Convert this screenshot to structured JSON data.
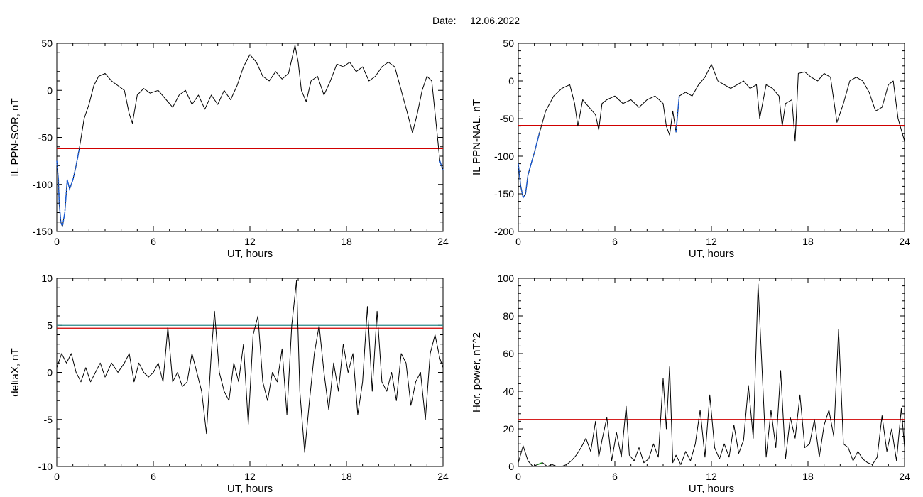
{
  "header": {
    "date_label": "Date:",
    "date_value": "12.06.2022"
  },
  "chart_data": [
    {
      "type": "line",
      "title": "",
      "xlabel": "UT, hours",
      "ylabel": "IL PPN-SOR, nT",
      "xlim": [
        0,
        24
      ],
      "ylim": [
        -150,
        50
      ],
      "xticks": [
        0,
        6,
        12,
        18,
        24
      ],
      "yticks": [
        -150,
        -100,
        -50,
        0,
        50
      ],
      "threshold": {
        "value": -62,
        "color": "#d00000"
      },
      "highlight_color": "#1f5fd6",
      "highlight_ranges": [
        [
          0,
          1.4
        ],
        [
          23.7,
          24
        ]
      ],
      "series": [
        {
          "color": "#000000",
          "x": [
            0,
            0.1,
            0.15,
            0.25,
            0.35,
            0.5,
            0.65,
            0.8,
            1.0,
            1.2,
            1.4,
            1.7,
            2.0,
            2.3,
            2.6,
            3.0,
            3.4,
            3.8,
            4.2,
            4.5,
            4.7,
            5.0,
            5.4,
            5.8,
            6.3,
            6.8,
            7.2,
            7.6,
            8.0,
            8.4,
            8.8,
            9.2,
            9.6,
            10.0,
            10.4,
            10.8,
            11.2,
            11.6,
            12.0,
            12.4,
            12.8,
            13.2,
            13.6,
            14.0,
            14.4,
            14.8,
            15.0,
            15.2,
            15.5,
            15.8,
            16.2,
            16.6,
            17.0,
            17.4,
            17.8,
            18.2,
            18.6,
            19.0,
            19.4,
            19.8,
            20.2,
            20.6,
            21.0,
            21.4,
            21.8,
            22.1,
            22.4,
            22.7,
            23.0,
            23.3,
            23.6,
            23.8,
            24.0
          ],
          "y": [
            -75,
            -95,
            -120,
            -140,
            -145,
            -130,
            -95,
            -105,
            -95,
            -80,
            -62,
            -30,
            -15,
            5,
            15,
            18,
            10,
            5,
            0,
            -25,
            -35,
            -5,
            2,
            -3,
            0,
            -10,
            -18,
            -5,
            0,
            -15,
            -5,
            -20,
            -5,
            -15,
            0,
            -10,
            5,
            25,
            38,
            30,
            15,
            10,
            20,
            12,
            18,
            48,
            30,
            0,
            -12,
            10,
            15,
            -5,
            10,
            28,
            25,
            30,
            20,
            25,
            10,
            15,
            25,
            30,
            25,
            0,
            -25,
            -45,
            -25,
            0,
            15,
            10,
            -40,
            -75,
            -85
          ]
        }
      ]
    },
    {
      "type": "line",
      "title": "",
      "xlabel": "UT, hours",
      "ylabel": "IL PPN-NAL, nT",
      "xlim": [
        0,
        24
      ],
      "ylim": [
        -200,
        50
      ],
      "xticks": [
        0,
        6,
        12,
        18,
        24
      ],
      "yticks": [
        -200,
        -150,
        -100,
        -50,
        0,
        50
      ],
      "threshold": {
        "value": -59,
        "color": "#d00000"
      },
      "highlight_color": "#1f5fd6",
      "highlight_ranges": [
        [
          0,
          1.3
        ],
        [
          3.6,
          3.8
        ],
        [
          5.1,
          5.25
        ],
        [
          9.3,
          9.5
        ],
        [
          9.8,
          10.0
        ],
        [
          16.3,
          16.5
        ],
        [
          17.1,
          17.3
        ]
      ],
      "series": [
        {
          "color": "#000000",
          "x": [
            0,
            0.15,
            0.3,
            0.45,
            0.6,
            0.8,
            1.0,
            1.3,
            1.7,
            2.2,
            2.7,
            3.2,
            3.5,
            3.7,
            4.0,
            4.4,
            4.8,
            5.0,
            5.2,
            5.5,
            6.0,
            6.5,
            7.0,
            7.5,
            8.0,
            8.5,
            9.0,
            9.2,
            9.4,
            9.6,
            9.8,
            10.0,
            10.4,
            10.8,
            11.2,
            11.6,
            12.0,
            12.4,
            12.8,
            13.2,
            13.6,
            14.0,
            14.4,
            14.8,
            15.0,
            15.4,
            15.8,
            16.2,
            16.4,
            16.6,
            17.0,
            17.2,
            17.4,
            17.8,
            18.2,
            18.6,
            19.0,
            19.4,
            19.8,
            20.2,
            20.6,
            21.0,
            21.4,
            21.8,
            22.2,
            22.6,
            23.0,
            23.3,
            23.6,
            24.0
          ],
          "y": [
            -110,
            -140,
            -155,
            -150,
            -125,
            -110,
            -95,
            -70,
            -40,
            -20,
            -10,
            -5,
            -30,
            -60,
            -25,
            -35,
            -45,
            -65,
            -30,
            -25,
            -20,
            -30,
            -25,
            -35,
            -25,
            -20,
            -30,
            -60,
            -72,
            -40,
            -68,
            -20,
            -15,
            -20,
            -5,
            5,
            22,
            0,
            -5,
            -10,
            -5,
            0,
            -10,
            -5,
            -50,
            -5,
            -10,
            -20,
            -60,
            -30,
            -25,
            -80,
            10,
            12,
            5,
            0,
            10,
            5,
            -55,
            -30,
            0,
            5,
            0,
            -15,
            -40,
            -35,
            -5,
            0,
            -50,
            -80
          ]
        }
      ]
    },
    {
      "type": "line",
      "title": "",
      "xlabel": "UT, hours",
      "ylabel": "deltaX, nT",
      "xlim": [
        0,
        24
      ],
      "ylim": [
        -10,
        10
      ],
      "xticks": [
        0,
        6,
        12,
        18,
        24
      ],
      "yticks": [
        -10,
        -5,
        0,
        5,
        10
      ],
      "thresholds": [
        {
          "value": 5.0,
          "color": "#2a8a8a"
        },
        {
          "value": 4.7,
          "color": "#d00000"
        }
      ],
      "series": [
        {
          "color": "#000000",
          "x": [
            0,
            0.3,
            0.6,
            0.9,
            1.2,
            1.5,
            1.8,
            2.1,
            2.4,
            2.7,
            3.0,
            3.4,
            3.8,
            4.2,
            4.5,
            4.8,
            5.1,
            5.4,
            5.7,
            6.0,
            6.3,
            6.6,
            6.9,
            7.2,
            7.5,
            7.8,
            8.1,
            8.4,
            8.7,
            9.0,
            9.3,
            9.6,
            9.8,
            10.1,
            10.4,
            10.7,
            11.0,
            11.3,
            11.6,
            11.9,
            12.2,
            12.5,
            12.8,
            13.1,
            13.4,
            13.7,
            14.0,
            14.3,
            14.6,
            14.9,
            15.1,
            15.4,
            15.7,
            16.0,
            16.3,
            16.6,
            16.9,
            17.2,
            17.5,
            17.8,
            18.1,
            18.4,
            18.7,
            19.0,
            19.3,
            19.6,
            19.9,
            20.2,
            20.5,
            20.8,
            21.1,
            21.4,
            21.7,
            22.0,
            22.3,
            22.6,
            22.9,
            23.2,
            23.5,
            23.8,
            24.0
          ],
          "y": [
            0.5,
            2.0,
            1.0,
            2.0,
            0.0,
            -1.0,
            0.5,
            -1.0,
            0.0,
            1.0,
            -0.5,
            1.0,
            0.0,
            1.0,
            2.0,
            -1.0,
            1.0,
            0.0,
            -0.5,
            0.0,
            1.0,
            -1.0,
            4.8,
            -1.0,
            0.0,
            -1.5,
            -1.0,
            2.0,
            0.0,
            -2.0,
            -6.5,
            2.0,
            6.5,
            0.0,
            -2.0,
            -3.0,
            1.0,
            -1.0,
            3.0,
            -5.5,
            4.0,
            6.0,
            -1.0,
            -3.0,
            0.0,
            -1.0,
            2.5,
            -4.5,
            5.0,
            9.8,
            -2.0,
            -8.5,
            -3.0,
            2.0,
            5.0,
            0.0,
            -4.0,
            1.0,
            -2.0,
            3.0,
            0.0,
            2.0,
            -4.5,
            -1.0,
            7.0,
            -2.0,
            6.5,
            -1.0,
            -2.0,
            0.0,
            -3.0,
            2.0,
            1.0,
            -3.5,
            -1.0,
            0.0,
            -5.0,
            2.0,
            4.0,
            1.5,
            0.5
          ]
        }
      ]
    },
    {
      "type": "line",
      "title": "",
      "xlabel": "UT, hours",
      "ylabel": "Hor. power, nT^2",
      "xlim": [
        0,
        24
      ],
      "ylim": [
        0,
        100
      ],
      "xticks": [
        0,
        6,
        12,
        18,
        24
      ],
      "yticks": [
        0,
        20,
        40,
        60,
        80,
        100
      ],
      "threshold": {
        "value": 25,
        "color": "#d00000"
      },
      "highlight_color": "#1a8a1a",
      "highlight_ranges": [
        [
          1.2,
          1.5
        ]
      ],
      "series": [
        {
          "color": "#000000",
          "x": [
            0,
            0.3,
            0.6,
            0.9,
            1.2,
            1.5,
            1.8,
            2.1,
            2.4,
            2.7,
            3.0,
            3.3,
            3.6,
            3.9,
            4.2,
            4.5,
            4.8,
            5.0,
            5.2,
            5.5,
            5.8,
            6.1,
            6.4,
            6.7,
            6.9,
            7.2,
            7.5,
            7.8,
            8.1,
            8.4,
            8.7,
            9.0,
            9.2,
            9.4,
            9.6,
            9.8,
            10.1,
            10.4,
            10.7,
            11.0,
            11.3,
            11.6,
            11.9,
            12.2,
            12.5,
            12.8,
            13.1,
            13.4,
            13.7,
            14.0,
            14.3,
            14.6,
            14.9,
            15.1,
            15.4,
            15.7,
            16.0,
            16.3,
            16.6,
            16.9,
            17.2,
            17.5,
            17.8,
            18.1,
            18.4,
            18.7,
            19.0,
            19.3,
            19.6,
            19.9,
            20.2,
            20.5,
            20.8,
            21.1,
            21.4,
            21.7,
            22.0,
            22.3,
            22.6,
            22.9,
            23.2,
            23.5,
            23.8,
            24.0
          ],
          "y": [
            2,
            11,
            3,
            0,
            1,
            2,
            0,
            1,
            0,
            0,
            1,
            3,
            6,
            10,
            15,
            8,
            24,
            5,
            14,
            26,
            3,
            18,
            5,
            32,
            6,
            3,
            10,
            2,
            4,
            12,
            5,
            47,
            20,
            53,
            2,
            6,
            1,
            8,
            3,
            12,
            30,
            5,
            38,
            10,
            4,
            12,
            5,
            22,
            7,
            14,
            43,
            15,
            97,
            60,
            5,
            30,
            10,
            51,
            4,
            26,
            15,
            38,
            10,
            12,
            25,
            5,
            22,
            30,
            16,
            73,
            12,
            10,
            3,
            8,
            4,
            2,
            1,
            5,
            27,
            8,
            20,
            3,
            31,
            10
          ]
        }
      ]
    }
  ]
}
